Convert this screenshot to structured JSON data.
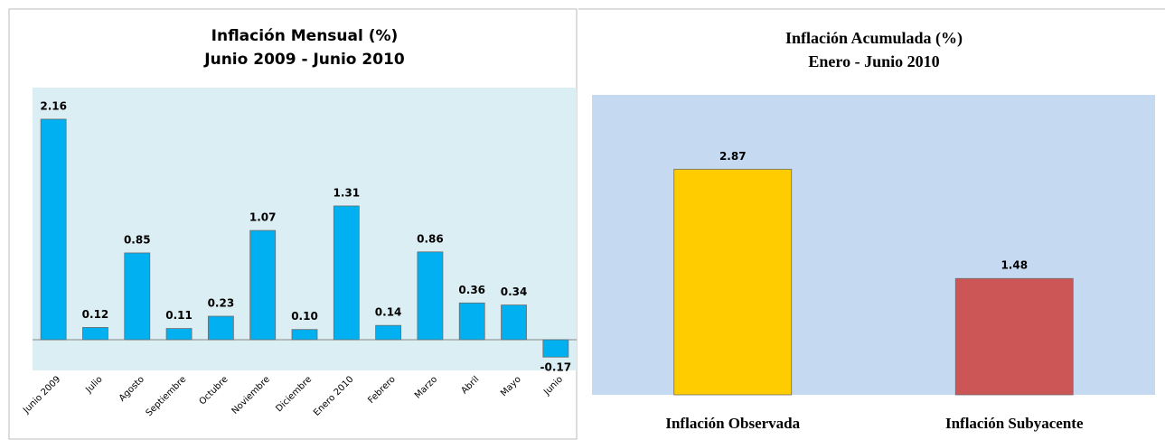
{
  "chart_data": [
    {
      "type": "bar",
      "title": "Inflación Mensual (%)",
      "subtitle": "Junio 2009 -  Junio 2010",
      "categories": [
        "Junio 2009",
        "Julio",
        "Agosto",
        "Septiembre",
        "Octubre",
        "Noviembre",
        "Diciembre",
        "Enero 2010",
        "Febrero",
        "Marzo",
        "Abril",
        "Mayo",
        "Junio"
      ],
      "values": [
        2.16,
        0.12,
        0.85,
        0.11,
        0.23,
        1.07,
        0.1,
        1.31,
        0.14,
        0.86,
        0.36,
        0.34,
        -0.17
      ],
      "value_labels": [
        "2.16",
        "0.12",
        "0.85",
        "0.11",
        "0.23",
        "1.07",
        "0.10",
        "1.31",
        "0.14",
        "0.86",
        "0.36",
        "0.34",
        "-0.17"
      ],
      "color": "#00b0f0"
    },
    {
      "type": "bar",
      "title": "Inflación Acumulada (%)",
      "subtitle": "Enero - Junio  2010",
      "categories": [
        "Inflación Observada",
        "Inflación Subyacente"
      ],
      "values": [
        2.87,
        1.48
      ],
      "value_labels": [
        "2.87",
        "1.48"
      ],
      "colors": [
        "#ffcc00",
        "#cc5555"
      ]
    }
  ]
}
